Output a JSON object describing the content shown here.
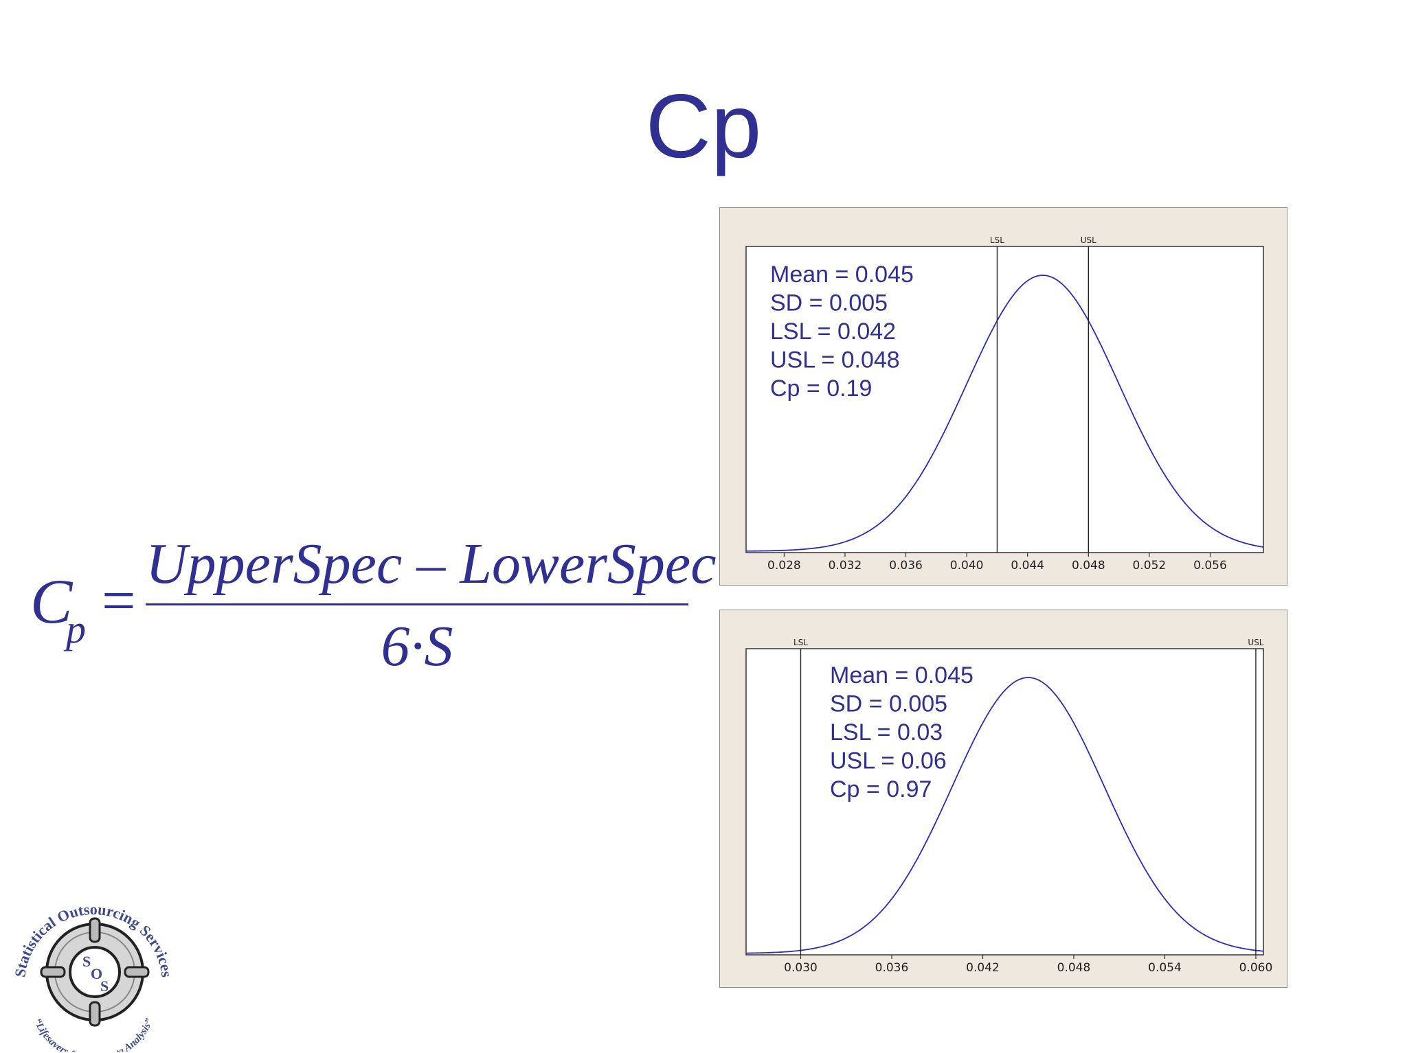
{
  "slide": {
    "title": "Cp"
  },
  "formula": {
    "lhs": "C",
    "lhs_subscript": "p",
    "equals": "=",
    "numerator": "UpperSpec – LowerSpec",
    "denominator": "6·S"
  },
  "logo": {
    "top_text": "Statistical Outsourcing Services",
    "center_letters": [
      "S",
      "O",
      "S"
    ],
    "bottom_text": "“Lifesavers for Your Data Analysis”"
  },
  "colors": {
    "accent": "#303092",
    "curve": "#2b2bb8",
    "panel_bg": "#efe8de",
    "plot_bg": "#ffffff"
  },
  "chart_data": [
    {
      "type": "line",
      "distribution": "normal",
      "xlim": [
        0.0255,
        0.0595
      ],
      "xticks": [
        0.028,
        0.032,
        0.036,
        0.04,
        0.044,
        0.048,
        0.052,
        0.056
      ],
      "xtick_labels": [
        "0.028",
        "0.032",
        "0.036",
        "0.040",
        "0.044",
        "0.048",
        "0.052",
        "0.056"
      ],
      "lsl": 0.042,
      "usl": 0.048,
      "lsl_label": "LSL",
      "usl_label": "USL",
      "stats": [
        "Mean = 0.045",
        "SD = 0.005",
        "LSL = 0.042",
        "USL = 0.048",
        "Cp = 0.19"
      ]
    },
    {
      "type": "line",
      "distribution": "normal",
      "xlim": [
        0.0264,
        0.0605
      ],
      "xticks": [
        0.03,
        0.036,
        0.042,
        0.048,
        0.054,
        0.06
      ],
      "xtick_labels": [
        "0.030",
        "0.036",
        "0.042",
        "0.048",
        "0.054",
        "0.060"
      ],
      "lsl": 0.03,
      "usl": 0.06,
      "lsl_label": "LSL",
      "usl_label": "USL",
      "stats": [
        "Mean = 0.045",
        "SD = 0.005",
        "LSL = 0.03",
        "USL = 0.06",
        "Cp = 0.97"
      ]
    }
  ]
}
